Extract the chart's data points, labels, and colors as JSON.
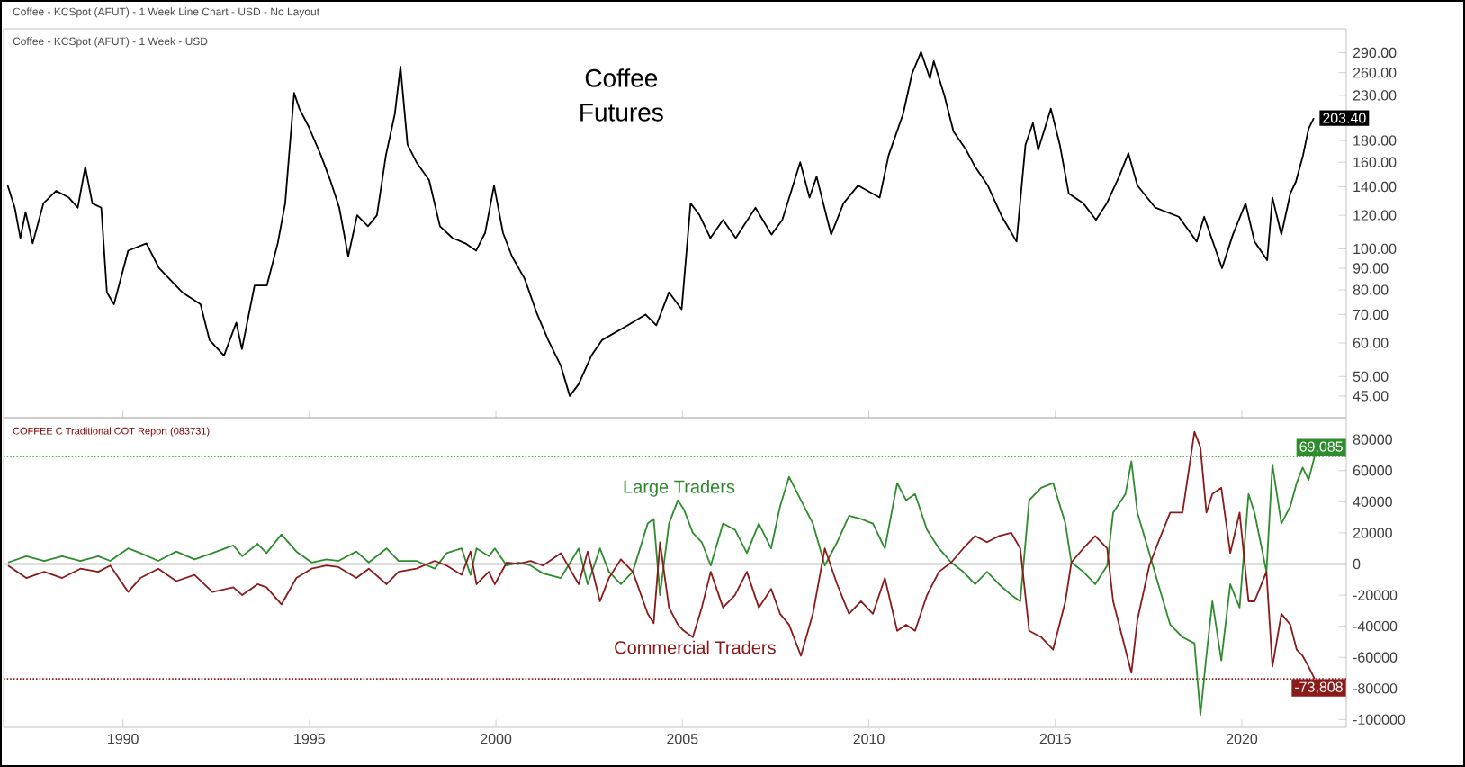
{
  "chart_data": [
    {
      "type": "line",
      "title": "Coffee Futures",
      "subtitle": "Coffee - KCSpot (AFUT) - 1 Week - USD",
      "annotations": [
        "Coffee - KCSpot (AFUT) - 1 Week Line Chart - USD - No Layout",
        {
          "text": "203.40",
          "x": 2021.93,
          "y": 203.4
        }
      ],
      "x": [
        1986.91,
        1987.1,
        1987.25,
        1987.39,
        1987.58,
        1987.87,
        1988.21,
        1988.55,
        1988.79,
        1988.99,
        1989.18,
        1989.42,
        1989.57,
        1989.76,
        1990.14,
        1990.63,
        1990.97,
        1991.59,
        1992.08,
        1992.32,
        1992.71,
        1993.04,
        1993.19,
        1993.53,
        1993.86,
        1994.15,
        1994.35,
        1994.59,
        1994.73,
        1994.98,
        1995.31,
        1995.56,
        1995.8,
        1996.04,
        1996.28,
        1996.57,
        1996.81,
        1997.05,
        1997.29,
        1997.44,
        1997.63,
        1997.87,
        1998.21,
        1998.5,
        1998.84,
        1999.18,
        1999.47,
        1999.71,
        1999.95,
        2000.19,
        2000.43,
        2000.77,
        2001.11,
        2001.4,
        2001.74,
        2001.98,
        2002.22,
        2002.56,
        2002.85,
        2003.53,
        2004.01,
        2004.3,
        2004.64,
        2004.98,
        2005.22,
        2005.46,
        2005.75,
        2006.09,
        2006.43,
        2006.96,
        2007.39,
        2007.68,
        2008.16,
        2008.41,
        2008.6,
        2008.74,
        2008.99,
        2009.32,
        2009.71,
        2010.29,
        2010.53,
        2010.92,
        2011.16,
        2011.4,
        2011.64,
        2011.74,
        2012.03,
        2012.27,
        2012.61,
        2012.85,
        2013.19,
        2013.57,
        2013.96,
        2014.2,
        2014.4,
        2014.54,
        2014.88,
        2015.12,
        2015.36,
        2015.75,
        2016.09,
        2016.38,
        2016.71,
        2016.96,
        2017.2,
        2017.68,
        2018.31,
        2018.79,
        2018.99,
        2019.47,
        2019.76,
        2020.1,
        2020.34,
        2020.68,
        2020.82,
        2021.06,
        2021.3,
        2021.45,
        2021.64,
        2021.79,
        2021.93
      ],
      "values": [
        141,
        125,
        106,
        122,
        103,
        128,
        137,
        132,
        125,
        156,
        128,
        125,
        79,
        74,
        99,
        103,
        90,
        79,
        74,
        61,
        56,
        67,
        58,
        82,
        82,
        103,
        128,
        233,
        214,
        194,
        166,
        145,
        125,
        96,
        120,
        113,
        120,
        166,
        208,
        269,
        176,
        160,
        145,
        113,
        106,
        103,
        99,
        109,
        141,
        109,
        96,
        85,
        70,
        61,
        53,
        45,
        48,
        56,
        61,
        66,
        70,
        66,
        79,
        72,
        128,
        120,
        106,
        117,
        106,
        125,
        108,
        117,
        160,
        132,
        148,
        132,
        108,
        128,
        141,
        132,
        166,
        208,
        259,
        291,
        252,
        277,
        229,
        189,
        171,
        156,
        141,
        119,
        104,
        176,
        198,
        171,
        214,
        176,
        135,
        128,
        117,
        128,
        148,
        168,
        141,
        125,
        119,
        104,
        119,
        90,
        108,
        128,
        104,
        94,
        132,
        108,
        135,
        144,
        166,
        192,
        203.4
      ],
      "color": "#000000",
      "log": "y",
      "xlim": [
        1986.8,
        2022.8
      ],
      "ylim": [
        40,
        330
      ],
      "xticks": [
        1990,
        1995,
        2000,
        2005,
        2010,
        2015,
        2020
      ],
      "yticks": [
        {
          "value": 45,
          "label": "45.00"
        },
        {
          "value": 50,
          "label": "50.00"
        },
        {
          "value": 60,
          "label": "60.00"
        },
        {
          "value": 70,
          "label": "70.00"
        },
        {
          "value": 80,
          "label": "80.00"
        },
        {
          "value": 90,
          "label": "90.00"
        },
        {
          "value": 100,
          "label": "100.00"
        },
        {
          "value": 120,
          "label": "120.00"
        },
        {
          "value": 140,
          "label": "140.00"
        },
        {
          "value": 160,
          "label": "160.00"
        },
        {
          "value": 180,
          "label": "180.00"
        },
        {
          "value": 230,
          "label": "230.00"
        },
        {
          "value": 260,
          "label": "260.00"
        },
        {
          "value": 290,
          "label": "290.00"
        }
      ],
      "tick_labels": "y"
    },
    {
      "type": "line",
      "title": "COFFEE C Traditional COT Report (083731)",
      "x": [
        1986.92,
        1987.41,
        1987.89,
        1988.37,
        1988.86,
        1989.34,
        1989.66,
        1990.14,
        1990.47,
        1990.95,
        1991.43,
        1991.92,
        1992.4,
        1992.96,
        1993.2,
        1993.61,
        1993.85,
        1994.25,
        1994.65,
        1995.06,
        1995.46,
        1995.78,
        1996.26,
        1996.59,
        1997.07,
        1997.39,
        1997.87,
        1998.36,
        1998.68,
        1999.08,
        1999.32,
        1999.48,
        1999.81,
        1999.97,
        2000.29,
        2000.61,
        2000.93,
        2001.26,
        2001.74,
        2002.22,
        2002.46,
        2002.79,
        2003.03,
        2003.35,
        2003.67,
        2004.07,
        2004.23,
        2004.4,
        2004.64,
        2004.88,
        2005.04,
        2005.28,
        2005.52,
        2005.76,
        2006.09,
        2006.41,
        2006.73,
        2007.05,
        2007.38,
        2007.62,
        2007.86,
        2008.18,
        2008.5,
        2008.82,
        2009.15,
        2009.47,
        2009.79,
        2010.11,
        2010.43,
        2010.76,
        2011.0,
        2011.24,
        2011.56,
        2011.88,
        2012.21,
        2012.53,
        2012.85,
        2013.17,
        2013.49,
        2013.82,
        2014.06,
        2014.3,
        2014.62,
        2014.94,
        2015.27,
        2015.43,
        2015.75,
        2016.07,
        2016.39,
        2016.55,
        2016.88,
        2017.04,
        2017.2,
        2017.52,
        2017.76,
        2018.08,
        2018.41,
        2018.73,
        2018.89,
        2019.05,
        2019.21,
        2019.45,
        2019.69,
        2019.94,
        2020.18,
        2020.34,
        2020.66,
        2020.82,
        2021.06,
        2021.3,
        2021.47,
        2021.63,
        2021.79,
        2021.95
      ],
      "series": [
        {
          "name": "Large Traders",
          "color": "#2e8b2e",
          "values": [
            1000,
            5000,
            2000,
            5000,
            2000,
            5000,
            2000,
            10000,
            7000,
            2000,
            8000,
            3000,
            7000,
            12000,
            5000,
            13000,
            7000,
            19000,
            8000,
            1000,
            3000,
            2000,
            8000,
            1000,
            10000,
            2000,
            2000,
            -3000,
            7000,
            10000,
            -7000,
            10000,
            5000,
            10000,
            -1000,
            1000,
            -1000,
            -6000,
            -9000,
            10000,
            -13000,
            10000,
            -5000,
            -13000,
            -5000,
            26000,
            29000,
            -20000,
            26000,
            41000,
            35000,
            20000,
            14000,
            -1000,
            26000,
            22000,
            7000,
            26000,
            10000,
            37000,
            56000,
            41000,
            26000,
            -1000,
            14000,
            31000,
            29000,
            26000,
            10000,
            52000,
            41000,
            45000,
            22000,
            10000,
            1000,
            -5000,
            -13000,
            -5000,
            -13000,
            -20000,
            -24000,
            41000,
            49000,
            52000,
            26000,
            1000,
            -5000,
            -13000,
            -1000,
            33000,
            45000,
            66000,
            33000,
            7000,
            -13000,
            -39000,
            -47000,
            -51000,
            -97000,
            -59000,
            -24000,
            -62000,
            -13000,
            -28000,
            45000,
            33000,
            -5000,
            64000,
            26000,
            37000,
            52000,
            62000,
            54000,
            69085
          ]
        },
        {
          "name": "Commercial Traders",
          "color": "#8b1a1a",
          "values": [
            -1000,
            -9000,
            -5000,
            -9000,
            -3000,
            -5000,
            -1000,
            -18000,
            -9000,
            -3000,
            -11000,
            -7000,
            -18000,
            -15000,
            -20000,
            -13000,
            -15000,
            -26000,
            -9000,
            -3000,
            -1000,
            -2000,
            -9000,
            -3000,
            -13000,
            -5000,
            -3000,
            2000,
            -1000,
            -7000,
            8000,
            -13000,
            -5000,
            -13000,
            1000,
            0,
            2000,
            -1000,
            7000,
            -13000,
            8000,
            -24000,
            -9000,
            3000,
            -5000,
            -32000,
            -38000,
            14000,
            -28000,
            -39000,
            -43000,
            -47000,
            -28000,
            -5000,
            -28000,
            -20000,
            -5000,
            -28000,
            -16000,
            -32000,
            -39000,
            -59000,
            -32000,
            10000,
            -13000,
            -32000,
            -24000,
            -32000,
            -9000,
            -43000,
            -39000,
            -43000,
            -20000,
            -5000,
            1000,
            10000,
            18000,
            14000,
            18000,
            20000,
            10000,
            -43000,
            -47000,
            -55000,
            -24000,
            1000,
            10000,
            18000,
            10000,
            -24000,
            -55000,
            -70000,
            -36000,
            -1000,
            14000,
            33000,
            33000,
            85000,
            75000,
            33000,
            45000,
            49000,
            7000,
            33000,
            -24000,
            -24000,
            -5000,
            -66000,
            -32000,
            -39000,
            -55000,
            -59000,
            -66000,
            -73808
          ]
        }
      ],
      "xlim": [
        1986.8,
        2022.8
      ],
      "ylim": [
        -105000,
        94000
      ],
      "xticks": [
        1990,
        1995,
        2000,
        2005,
        2010,
        2015,
        2020
      ],
      "yticks": [
        -100000,
        -80000,
        -60000,
        -40000,
        -20000,
        0,
        20000,
        40000,
        60000,
        80000
      ],
      "ref_lines": [
        {
          "axis": "y",
          "value": 0,
          "color": "#808080",
          "line_style": "solid"
        },
        {
          "axis": "y",
          "value": 69085,
          "label": "69,085",
          "color": "#2e8b2e",
          "line_style": "dotted"
        },
        {
          "axis": "y",
          "value": -73808,
          "label": "-73,808",
          "color": "#8b1a1a",
          "line_style": "dotted"
        }
      ]
    }
  ]
}
